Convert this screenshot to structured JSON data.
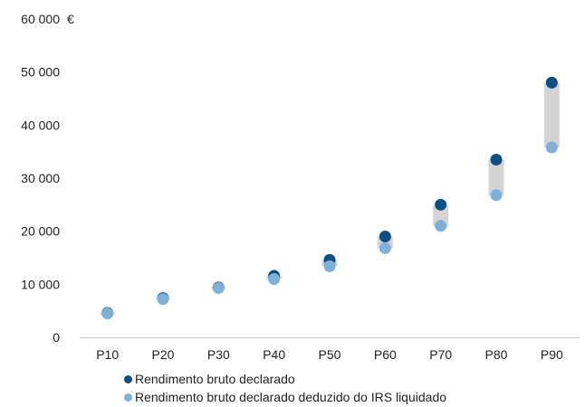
{
  "chart_data": {
    "type": "scatter",
    "y_unit": "€",
    "y_ticks": [
      "0",
      "10 000",
      "20 000",
      "30 000",
      "40 000",
      "50 000",
      "60 000"
    ],
    "ylim": [
      0,
      60000
    ],
    "y_tick_values": [
      0,
      10000,
      20000,
      30000,
      40000,
      50000,
      60000
    ],
    "categories": [
      "P10",
      "P20",
      "P30",
      "P40",
      "P50",
      "P60",
      "P70",
      "P80",
      "P90"
    ],
    "series": [
      {
        "name": "Rendimento bruto declarado",
        "color": "#0d4f82",
        "values": [
          4600,
          7400,
          9400,
          11600,
          14600,
          19000,
          25000,
          33500,
          48000
        ]
      },
      {
        "name": "Rendimento bruto declarado deduzido do IRS liquidado",
        "color": "#7fb0d8",
        "values": [
          4500,
          7200,
          9300,
          11000,
          13400,
          16800,
          21000,
          26800,
          35800
        ]
      }
    ],
    "range_bar_color": "#d4d4d4",
    "grid": false,
    "legend_position": "bottom"
  }
}
